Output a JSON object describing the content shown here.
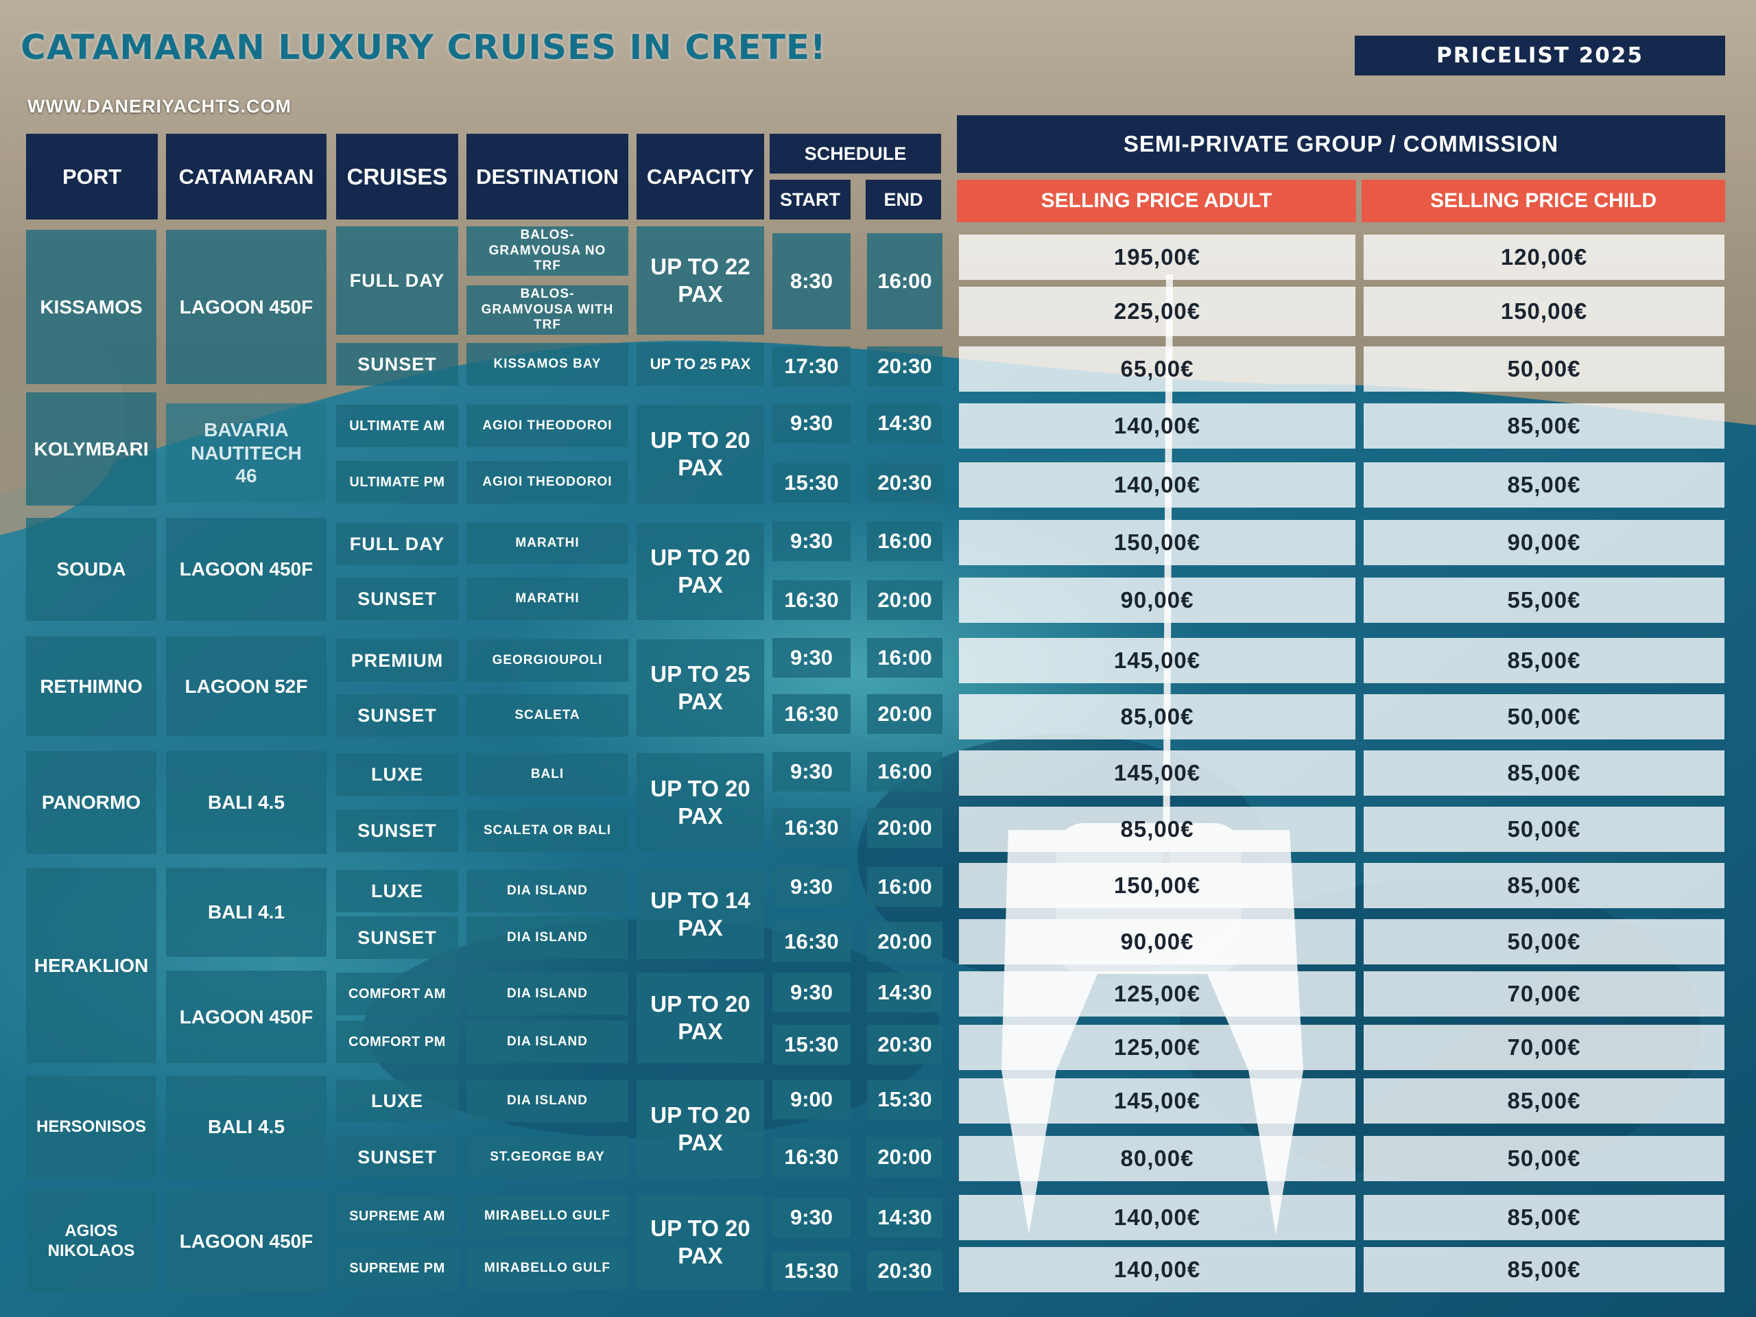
{
  "header": {
    "title": "CATAMARAN LUXURY  CRUISES IN CRETE!",
    "website": "WWW.DANERIYACHTS.COM",
    "badge": "PRICELIST  2025"
  },
  "columns": {
    "port": "PORT",
    "catamaran": "CATAMARAN",
    "cruises": "CRUISES",
    "destination": "DESTINATION",
    "capacity": "CAPACITY",
    "schedule": "SCHEDULE",
    "start": "START",
    "end": "END",
    "group": "SEMI-PRIVATE GROUP / COMMISSION",
    "adult": "SELLING PRICE ADULT",
    "child": "SELLING PRICE  CHILD"
  },
  "ports": [
    "KISSAMOS",
    "KOLYMBARI",
    "SOUDA",
    "RETHIMNO",
    "PANORMO",
    "HERAKLION",
    "HERSONISOS",
    "AGIOS NIKOLAOS"
  ],
  "catamarans": [
    "LAGOON 450F",
    "BAVARIA NAUTITECH 46",
    "LAGOON 450F",
    "LAGOON 52F",
    "BALI 4.5",
    "BALI  4.1",
    "LAGOON 450F",
    "BALI  4.5",
    "LAGOON 450F"
  ],
  "cruises": [
    "FULL DAY",
    "SUNSET",
    "ULTIMATE AM",
    "ULTIMATE PM",
    "FULL DAY",
    "SUNSET",
    "PREMIUM",
    "SUNSET",
    "LUXE",
    "SUNSET",
    "LUXE",
    "SUNSET",
    "COMFORT AM",
    "COMFORT PM",
    "LUXE",
    "SUNSET",
    "SUPREME AM",
    "SUPREME PM"
  ],
  "destinations": [
    "BALOS-GRAMVOUSA NO TRF",
    "BALOS-GRAMVOUSA WITH TRF",
    "KISSAMOS BAY",
    "AGIOI THEODOROI",
    "AGIOI THEODOROI",
    "MARATHI",
    "MARATHI",
    "GEORGIOUPOLI",
    "SCALETA",
    "BALI",
    "SCALETA OR BALI",
    "DIA ISLAND",
    "DIA ISLAND",
    "DIA ISLAND",
    "DIA ISLAND",
    "DIA ISLAND",
    "ST.GEORGE BAY",
    "MIRABELLO GULF",
    "MIRABELLO GULF"
  ],
  "capacities": [
    "UP TO 22 PAX",
    "UP TO 25 PAX",
    "UP TO 20 PAX",
    "UP TO 20 PAX",
    "UP TO 25 PAX",
    "UP TO 20 PAX",
    "UP TO 14 PAX",
    "UP TO 20 PAX",
    "UP TO 20 PAX",
    "UP TO 20 PAX"
  ],
  "rows": [
    {
      "start": "8:30",
      "end": "16:00",
      "adult": "195,00€",
      "child": "120,00€"
    },
    {
      "start": "",
      "end": "",
      "adult": "225,00€",
      "child": "150,00€"
    },
    {
      "start": "17:30",
      "end": "20:30",
      "adult": "65,00€",
      "child": "50,00€"
    },
    {
      "start": "9:30",
      "end": "14:30",
      "adult": "140,00€",
      "child": "85,00€"
    },
    {
      "start": "15:30",
      "end": "20:30",
      "adult": "140,00€",
      "child": "85,00€"
    },
    {
      "start": "9:30",
      "end": "16:00",
      "adult": "150,00€",
      "child": "90,00€"
    },
    {
      "start": "16:30",
      "end": "20:00",
      "adult": "90,00€",
      "child": "55,00€"
    },
    {
      "start": "9:30",
      "end": "16:00",
      "adult": "145,00€",
      "child": "85,00€"
    },
    {
      "start": "16:30",
      "end": "20:00",
      "adult": "85,00€",
      "child": "50,00€"
    },
    {
      "start": "9:30",
      "end": "16:00",
      "adult": "145,00€",
      "child": "85,00€"
    },
    {
      "start": "16:30",
      "end": "20:00",
      "adult": "85,00€",
      "child": "50,00€"
    },
    {
      "start": "9:30",
      "end": "16:00",
      "adult": "150,00€",
      "child": "85,00€"
    },
    {
      "start": "16:30",
      "end": "20:00",
      "adult": "90,00€",
      "child": "50,00€"
    },
    {
      "start": "9:30",
      "end": "14:30",
      "adult": "125,00€",
      "child": "70,00€"
    },
    {
      "start": "15:30",
      "end": "20:30",
      "adult": "125,00€",
      "child": "70,00€"
    },
    {
      "start": "9:00",
      "end": "15:30",
      "adult": "145,00€",
      "child": "85,00€"
    },
    {
      "start": "16:30",
      "end": "20:00",
      "adult": "80,00€",
      "child": "50,00€"
    },
    {
      "start": "9:30",
      "end": "14:30",
      "adult": "140,00€",
      "child": "85,00€"
    },
    {
      "start": "15:30",
      "end": "20:30",
      "adult": "140,00€",
      "child": "85,00€"
    }
  ],
  "colors": {
    "navy": "#14294d",
    "coral": "#e85a45",
    "teal": "#1c6a7e",
    "title": "#14708a"
  }
}
